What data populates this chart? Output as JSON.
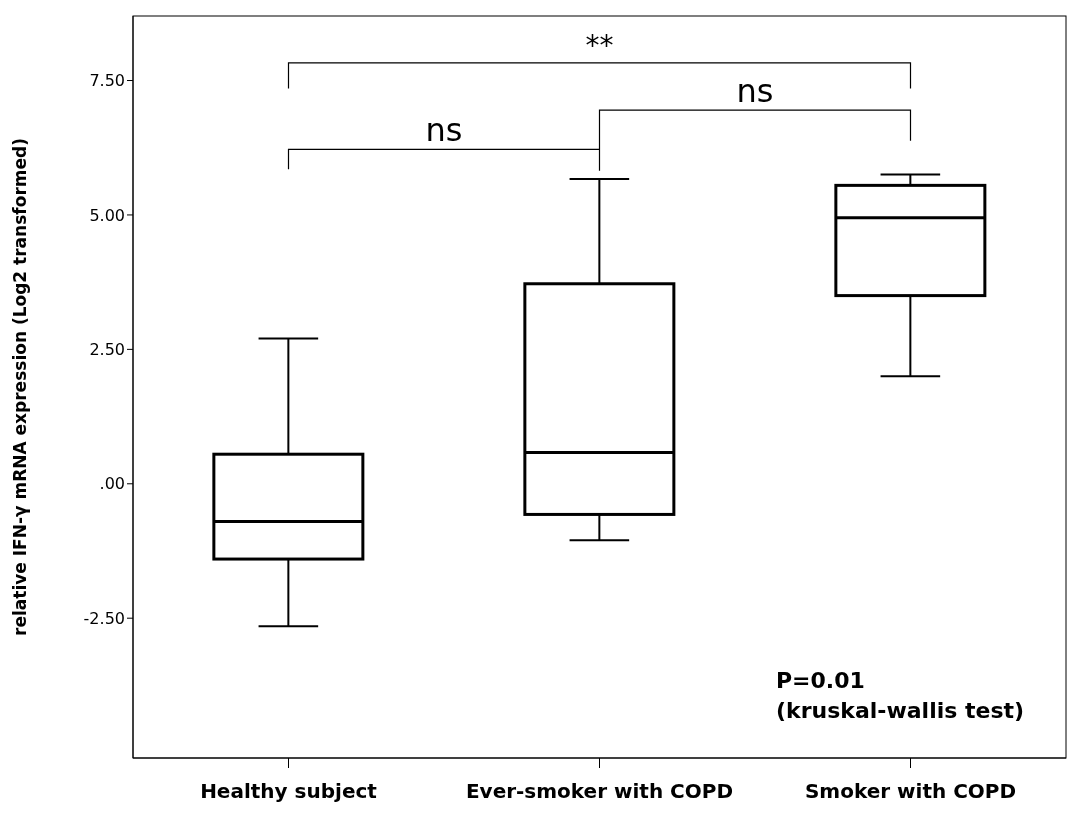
{
  "chart_data": {
    "type": "box",
    "ylabel": "relative IFN-γ mRNA expression (Log2 transformed)",
    "categories": [
      "Healthy subject",
      "Ever-smoker with COPD",
      "Smoker with COPD"
    ],
    "color": "#000000",
    "boxes": [
      {
        "low": -2.65,
        "q1": -1.4,
        "median": -0.7,
        "q3": 0.55,
        "high": 2.7
      },
      {
        "low": -1.05,
        "q1": -0.57,
        "median": 0.58,
        "q3": 3.72,
        "high": 5.67
      },
      {
        "low": 2.0,
        "q1": 3.5,
        "median": 4.95,
        "q3": 5.55,
        "high": 5.75
      }
    ],
    "ylim": [
      -5.1,
      8.7
    ],
    "yticks": [
      {
        "value": -2.5,
        "label": "-2.50"
      },
      {
        "value": 0,
        "label": ".00"
      },
      {
        "value": 2.5,
        "label": "2.50"
      },
      {
        "value": 5,
        "label": "5.00"
      },
      {
        "value": 7.5,
        "label": "7.50"
      }
    ],
    "grid": false,
    "annotations": [
      "**",
      "ns",
      "ns",
      "P=0.01\n(kruskal-wallis test)"
    ]
  }
}
